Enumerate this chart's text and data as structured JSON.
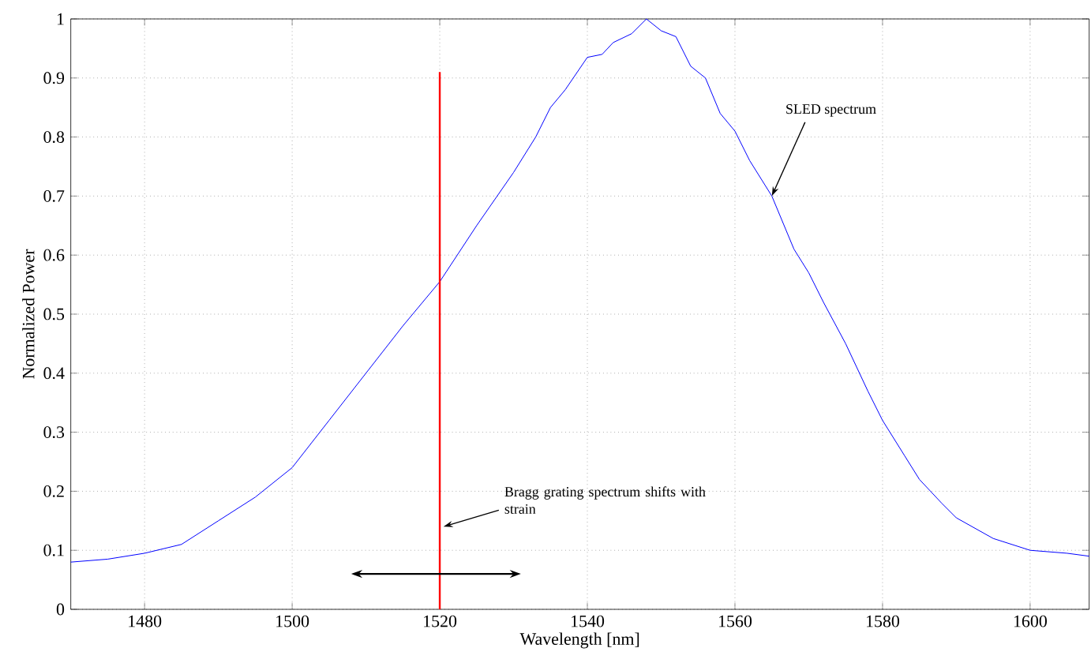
{
  "chart_data": {
    "type": "line",
    "xlabel": "Wavelength [nm]",
    "ylabel": "Normalized Power",
    "xlim": [
      1470,
      1608
    ],
    "ylim": [
      0,
      1
    ],
    "xticks": [
      1480,
      1500,
      1520,
      1540,
      1560,
      1580,
      1600
    ],
    "yticks": [
      0,
      0.1,
      0.2,
      0.3,
      0.4,
      0.5,
      0.6,
      0.7,
      0.8,
      0.9,
      1
    ],
    "grid": true,
    "marker": "none",
    "line_style": "solid",
    "series": [
      {
        "color": "#0000ff",
        "x": [
          1470,
          1475,
          1480,
          1485,
          1490,
          1495,
          1500,
          1505,
          1510,
          1515,
          1520,
          1525,
          1530,
          1533,
          1535,
          1537,
          1540,
          1542,
          1543.5,
          1546,
          1548,
          1550,
          1552,
          1554,
          1556,
          1558,
          1560,
          1562,
          1565,
          1568,
          1570,
          1572,
          1575,
          1578,
          1580,
          1583,
          1585,
          1588,
          1590,
          1595,
          1600,
          1605,
          1608
        ],
        "values": [
          0.08,
          0.085,
          0.095,
          0.11,
          0.15,
          0.19,
          0.24,
          0.32,
          0.4,
          0.48,
          0.555,
          0.65,
          0.74,
          0.8,
          0.85,
          0.88,
          0.935,
          0.94,
          0.96,
          0.975,
          1.0,
          0.98,
          0.97,
          0.92,
          0.9,
          0.84,
          0.81,
          0.76,
          0.7,
          0.61,
          0.57,
          0.52,
          0.45,
          0.37,
          0.32,
          0.26,
          0.22,
          0.18,
          0.155,
          0.12,
          0.1,
          0.095,
          0.09
        ]
      },
      {
        "color": "#ff0000",
        "x": [
          1520,
          1520
        ],
        "values": [
          0,
          0.91
        ]
      }
    ],
    "annotations": [
      {
        "text": "SLED spectrum",
        "x": 1565,
        "y": 0.7
      },
      {
        "text": "Bragg grating spectrum shifts with strain",
        "x": 1520.5,
        "y": 0.14
      }
    ]
  }
}
